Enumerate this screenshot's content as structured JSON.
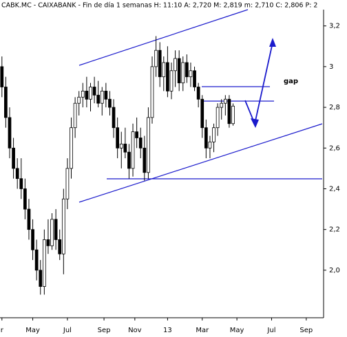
{
  "chart_data": {
    "type": "candlestick",
    "title": "CABK.MC - CAIXABANK - Fin de día 1 semanas  H: 11:10  A: 2,720  M: 2,819  m: 2,710  C: 2,806  P: 2",
    "annotations": [
      "gap"
    ],
    "x": [
      0,
      1,
      2,
      3,
      4,
      5,
      6,
      7,
      8,
      9,
      10,
      11,
      12,
      13,
      14,
      15,
      16,
      17,
      18,
      19,
      20,
      21,
      22,
      23,
      24,
      25,
      26,
      27,
      28,
      29,
      30,
      31,
      32,
      33,
      34,
      35,
      36,
      37,
      38,
      39,
      40,
      41,
      42,
      43,
      44,
      45,
      46,
      47,
      48,
      49,
      50,
      51,
      52,
      53,
      54,
      55,
      56,
      57,
      58,
      59,
      60
    ],
    "ohlc": [
      [
        3.0,
        3.05,
        2.85,
        2.9
      ],
      [
        2.9,
        2.95,
        2.7,
        2.75
      ],
      [
        2.75,
        2.8,
        2.55,
        2.6
      ],
      [
        2.6,
        2.65,
        2.45,
        2.5
      ],
      [
        2.5,
        2.55,
        2.4,
        2.45
      ],
      [
        2.45,
        2.55,
        2.35,
        2.4
      ],
      [
        2.4,
        2.45,
        2.25,
        2.3
      ],
      [
        2.3,
        2.35,
        2.15,
        2.2
      ],
      [
        2.2,
        2.25,
        2.05,
        2.1
      ],
      [
        2.1,
        2.15,
        1.95,
        2.0
      ],
      [
        2.0,
        2.05,
        1.88,
        1.92
      ],
      [
        1.92,
        2.2,
        1.88,
        2.15
      ],
      [
        2.15,
        2.25,
        2.08,
        2.12
      ],
      [
        2.12,
        2.28,
        2.1,
        2.25
      ],
      [
        2.25,
        2.3,
        2.1,
        2.15
      ],
      [
        2.15,
        2.2,
        2.05,
        2.08
      ],
      [
        2.08,
        2.4,
        1.98,
        2.35
      ],
      [
        2.35,
        2.55,
        2.3,
        2.5
      ],
      [
        2.5,
        2.75,
        2.45,
        2.7
      ],
      [
        2.7,
        2.85,
        2.65,
        2.82
      ],
      [
        2.82,
        2.88,
        2.76,
        2.85
      ],
      [
        2.85,
        2.92,
        2.8,
        2.88
      ],
      [
        2.88,
        2.95,
        2.8,
        2.84
      ],
      [
        2.84,
        2.92,
        2.78,
        2.9
      ],
      [
        2.9,
        2.95,
        2.82,
        2.86
      ],
      [
        2.86,
        2.93,
        2.8,
        2.82
      ],
      [
        2.82,
        2.9,
        2.76,
        2.88
      ],
      [
        2.88,
        2.92,
        2.8,
        2.84
      ],
      [
        2.84,
        2.88,
        2.76,
        2.8
      ],
      [
        2.8,
        2.84,
        2.65,
        2.7
      ],
      [
        2.7,
        2.75,
        2.55,
        2.6
      ],
      [
        2.6,
        2.68,
        2.5,
        2.62
      ],
      [
        2.62,
        2.7,
        2.55,
        2.58
      ],
      [
        2.58,
        2.62,
        2.45,
        2.5
      ],
      [
        2.5,
        2.72,
        2.46,
        2.68
      ],
      [
        2.68,
        2.75,
        2.6,
        2.65
      ],
      [
        2.65,
        2.7,
        2.55,
        2.6
      ],
      [
        2.6,
        2.66,
        2.44,
        2.48
      ],
      [
        2.48,
        2.8,
        2.45,
        2.75
      ],
      [
        2.75,
        3.05,
        2.72,
        3.0
      ],
      [
        3.0,
        3.15,
        2.95,
        3.08
      ],
      [
        3.08,
        3.12,
        2.9,
        2.95
      ],
      [
        2.95,
        3.05,
        2.88,
        3.02
      ],
      [
        3.02,
        3.1,
        2.85,
        2.88
      ],
      [
        2.88,
        3.02,
        2.84,
        2.98
      ],
      [
        2.98,
        3.08,
        2.9,
        3.04
      ],
      [
        3.04,
        3.08,
        2.88,
        2.92
      ],
      [
        2.92,
        3.05,
        2.88,
        3.02
      ],
      [
        3.02,
        3.06,
        2.92,
        2.95
      ],
      [
        2.95,
        3.02,
        2.9,
        2.98
      ],
      [
        2.98,
        3.0,
        2.88,
        2.9
      ],
      [
        2.9,
        2.92,
        2.8,
        2.84
      ],
      [
        2.84,
        2.86,
        2.65,
        2.7
      ],
      [
        2.7,
        2.74,
        2.55,
        2.6
      ],
      [
        2.6,
        2.66,
        2.55,
        2.63
      ],
      [
        2.63,
        2.72,
        2.58,
        2.7
      ],
      [
        2.7,
        2.82,
        2.66,
        2.8
      ],
      [
        2.8,
        2.84,
        2.74,
        2.82
      ],
      [
        2.82,
        2.86,
        2.76,
        2.84
      ],
      [
        2.84,
        2.86,
        2.7,
        2.72
      ],
      [
        2.72,
        2.819,
        2.71,
        2.806
      ]
    ],
    "up_color": "#ffffff",
    "down_color": "#000000",
    "xlim": [
      -0.5,
      83.5
    ],
    "xticks": [
      {
        "value": 0,
        "label": "r"
      },
      {
        "value": 8,
        "label": "May"
      },
      {
        "value": 17,
        "label": "Jul"
      },
      {
        "value": 26.5,
        "label": "Sep"
      },
      {
        "value": 34.5,
        "label": "Nov"
      },
      {
        "value": 43,
        "label": "13"
      },
      {
        "value": 52,
        "label": "Mar"
      },
      {
        "value": 61,
        "label": "May"
      },
      {
        "value": 70,
        "label": "Jul"
      },
      {
        "value": 79,
        "label": "Sep"
      }
    ],
    "ylim": [
      1.78,
      3.28
    ],
    "yticks": [
      {
        "value": 2.0,
        "label": "2,0"
      },
      {
        "value": 2.2,
        "label": "2,2"
      },
      {
        "value": 2.4,
        "label": "2,4"
      },
      {
        "value": 2.6,
        "label": "2,6"
      },
      {
        "value": 2.8,
        "label": "2,8"
      },
      3,
      {
        "value": 3.2,
        "label": "3,2"
      }
    ]
  }
}
